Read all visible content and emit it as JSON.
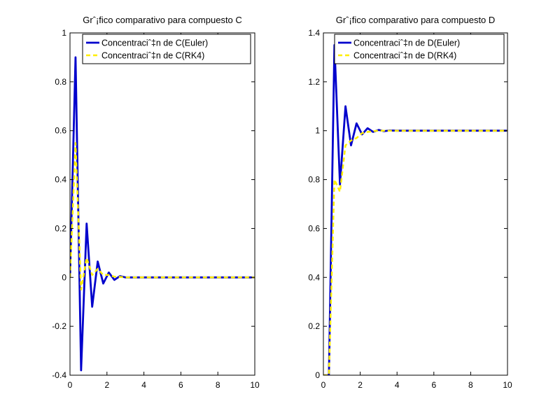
{
  "chart_data": [
    {
      "type": "line",
      "title": "Grˆ¡fico comparativo para compuesto C",
      "xlabel": "",
      "ylabel": "",
      "xlim": [
        0,
        10
      ],
      "ylim": [
        -0.4,
        1
      ],
      "xticks": [
        0,
        2,
        4,
        6,
        8,
        10
      ],
      "yticks": [
        -0.4,
        -0.2,
        0,
        0.2,
        0.4,
        0.6,
        0.8,
        1
      ],
      "xtick_labels": [
        "0",
        "2",
        "4",
        "6",
        "8",
        "10"
      ],
      "ytick_labels": [
        "-0.4",
        "-0.2",
        "0",
        "0.2",
        "0.4",
        "0.6",
        "0.8",
        "1"
      ],
      "grid": false,
      "legend": "top-right",
      "x": [
        0,
        0.3,
        0.6,
        0.9,
        1.2,
        1.5,
        1.8,
        2.1,
        2.4,
        2.7,
        3.0,
        3.3,
        3.6,
        4.0,
        10.0
      ],
      "series": [
        {
          "name": "Concentraciˆ‡n de C(Euler)",
          "color": "#0000cc",
          "style": "solid",
          "values": [
            0,
            0.9,
            -0.38,
            0.22,
            -0.12,
            0.065,
            -0.025,
            0.02,
            -0.01,
            0.005,
            0,
            0,
            0,
            0,
            0
          ]
        },
        {
          "name": "Concentraciˆ‡n de C(RK4)",
          "color": "#ffee00",
          "style": "dashed",
          "values": [
            0,
            0.55,
            -0.05,
            0.08,
            0.01,
            0.035,
            0.01,
            0.01,
            0.003,
            0.002,
            0,
            0,
            0,
            0,
            0
          ]
        }
      ]
    },
    {
      "type": "line",
      "title": "Grˆ¡fico comparativo para compuesto D",
      "xlabel": "",
      "ylabel": "",
      "xlim": [
        0,
        10
      ],
      "ylim": [
        0,
        1.4
      ],
      "xticks": [
        0,
        2,
        4,
        6,
        8,
        10
      ],
      "yticks": [
        0,
        0.2,
        0.4,
        0.6,
        0.8,
        1,
        1.2,
        1.4
      ],
      "xtick_labels": [
        "0",
        "2",
        "4",
        "6",
        "8",
        "10"
      ],
      "ytick_labels": [
        "0",
        "0.2",
        "0.4",
        "0.6",
        "0.8",
        "1",
        "1.2",
        "1.4"
      ],
      "grid": false,
      "legend": "top-right",
      "x": [
        0,
        0.3,
        0.6,
        0.9,
        1.2,
        1.5,
        1.8,
        2.1,
        2.4,
        2.7,
        3.0,
        3.3,
        3.6,
        4.0,
        10.0
      ],
      "series": [
        {
          "name": "Concentraciˆ‡n de D(Euler)",
          "color": "#0000cc",
          "style": "solid",
          "values": [
            0,
            0,
            1.35,
            0.78,
            1.1,
            0.94,
            1.03,
            0.985,
            1.01,
            0.995,
            1.003,
            0.998,
            1.001,
            1.0,
            1.0
          ]
        },
        {
          "name": "Concentraciˆ‡n de D(RK4)",
          "color": "#ffee00",
          "style": "dashed",
          "values": [
            0,
            0,
            0.8,
            0.75,
            0.94,
            0.96,
            0.97,
            0.99,
            0.995,
            0.998,
            1.0,
            1.0,
            1.0,
            1.0,
            1.0
          ]
        }
      ]
    }
  ]
}
